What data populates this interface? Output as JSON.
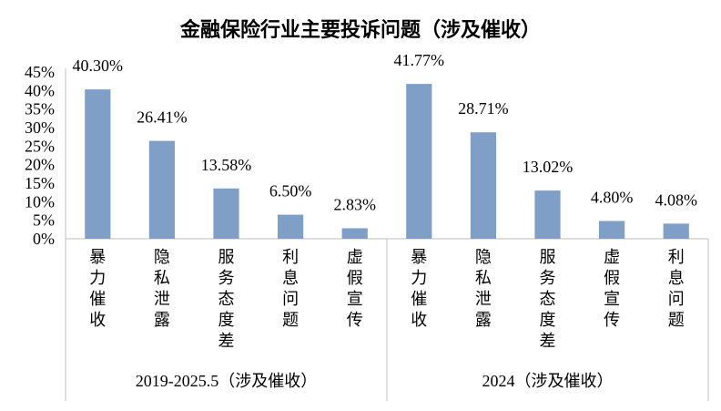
{
  "chart_data": {
    "type": "bar",
    "title": "金融保险行业主要投诉问题（涉及催收）",
    "ylim": [
      0,
      45
    ],
    "yticks": [
      "0%",
      "5%",
      "10%",
      "15%",
      "20%",
      "25%",
      "30%",
      "35%",
      "40%",
      "45%"
    ],
    "grid": false,
    "groups": [
      {
        "name": "2019-2025.5（涉及催收）",
        "categories": [
          "暴力催收",
          "隐私泄露",
          "服务态度差",
          "利息问题",
          "虚假宣传"
        ],
        "values": [
          40.3,
          26.41,
          13.58,
          6.5,
          2.83
        ],
        "labels": [
          "40.30%",
          "26.41%",
          "13.58%",
          "6.50%",
          "2.83%"
        ]
      },
      {
        "name": "2024（涉及催收）",
        "categories": [
          "暴力催收",
          "隐私泄露",
          "服务态度差",
          "虚假宣传",
          "利息问题"
        ],
        "values": [
          41.77,
          28.71,
          13.02,
          4.8,
          4.08
        ],
        "labels": [
          "41.77%",
          "28.71%",
          "13.02%",
          "4.80%",
          "4.08%"
        ]
      }
    ],
    "colors": {
      "bar": "#7f9fc7"
    }
  }
}
